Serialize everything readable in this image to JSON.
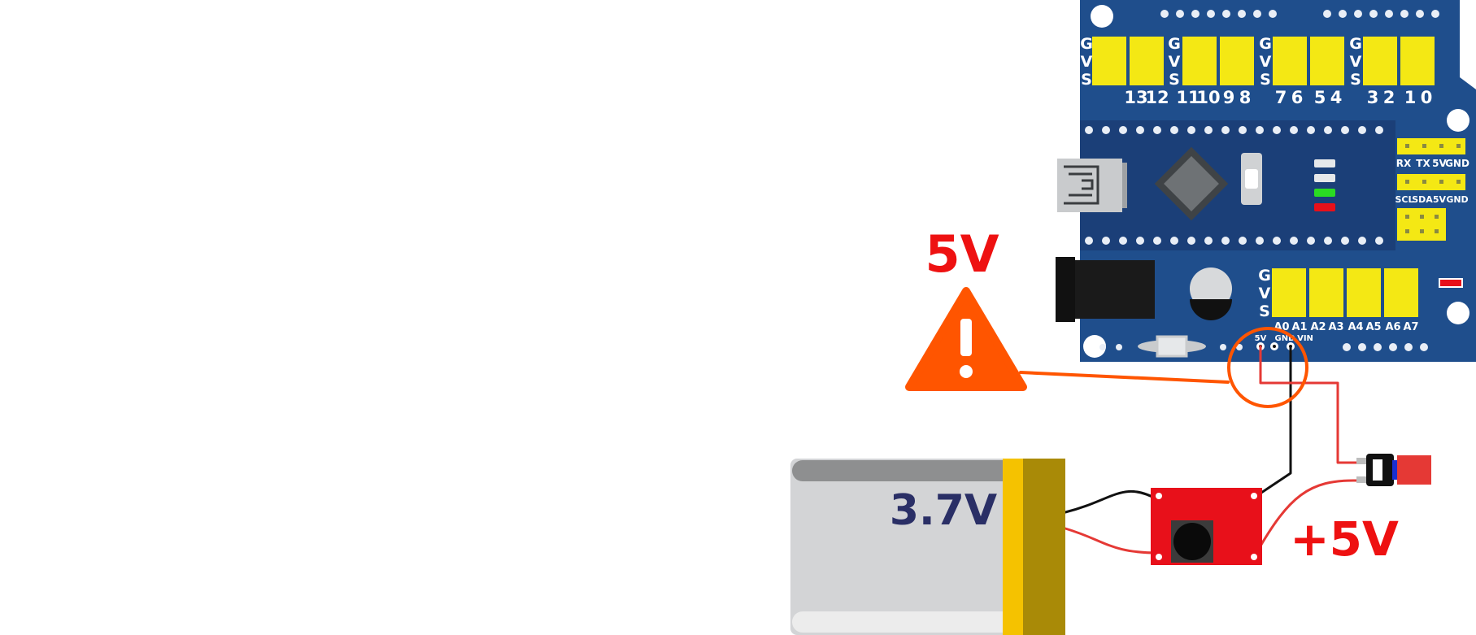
{
  "warning": {
    "label": "5V",
    "icon": "warning-triangle-icon"
  },
  "battery": {
    "label": "3.7V"
  },
  "boost_module": {
    "output_label": "+5V"
  },
  "board": {
    "gvs_letters": [
      "G",
      "V",
      "S"
    ],
    "digital_pins": [
      "13",
      "12",
      "11",
      "10",
      "9",
      "8",
      "7",
      "6",
      "5",
      "4",
      "3",
      "2",
      "1",
      "0"
    ],
    "analog_pins": [
      "A0",
      "A1",
      "A2",
      "A3",
      "A4",
      "A5",
      "A6",
      "A7"
    ],
    "uart_header": [
      "RX",
      "TX",
      "5V",
      "GND"
    ],
    "i2c_header": [
      "SCL",
      "SDA",
      "5V",
      "GND"
    ],
    "power_pins": [
      "5V",
      "GND",
      "VIN"
    ]
  },
  "colors": {
    "board": "#1f4e8c",
    "board_dark": "#1b3f78",
    "header": "#f4e814",
    "warning": "#ff5500",
    "red_label": "#ee1111",
    "battery_label": "#2a2f66",
    "module": "#e8101a",
    "wire_red": "#e53935",
    "wire_black": "#111111"
  }
}
